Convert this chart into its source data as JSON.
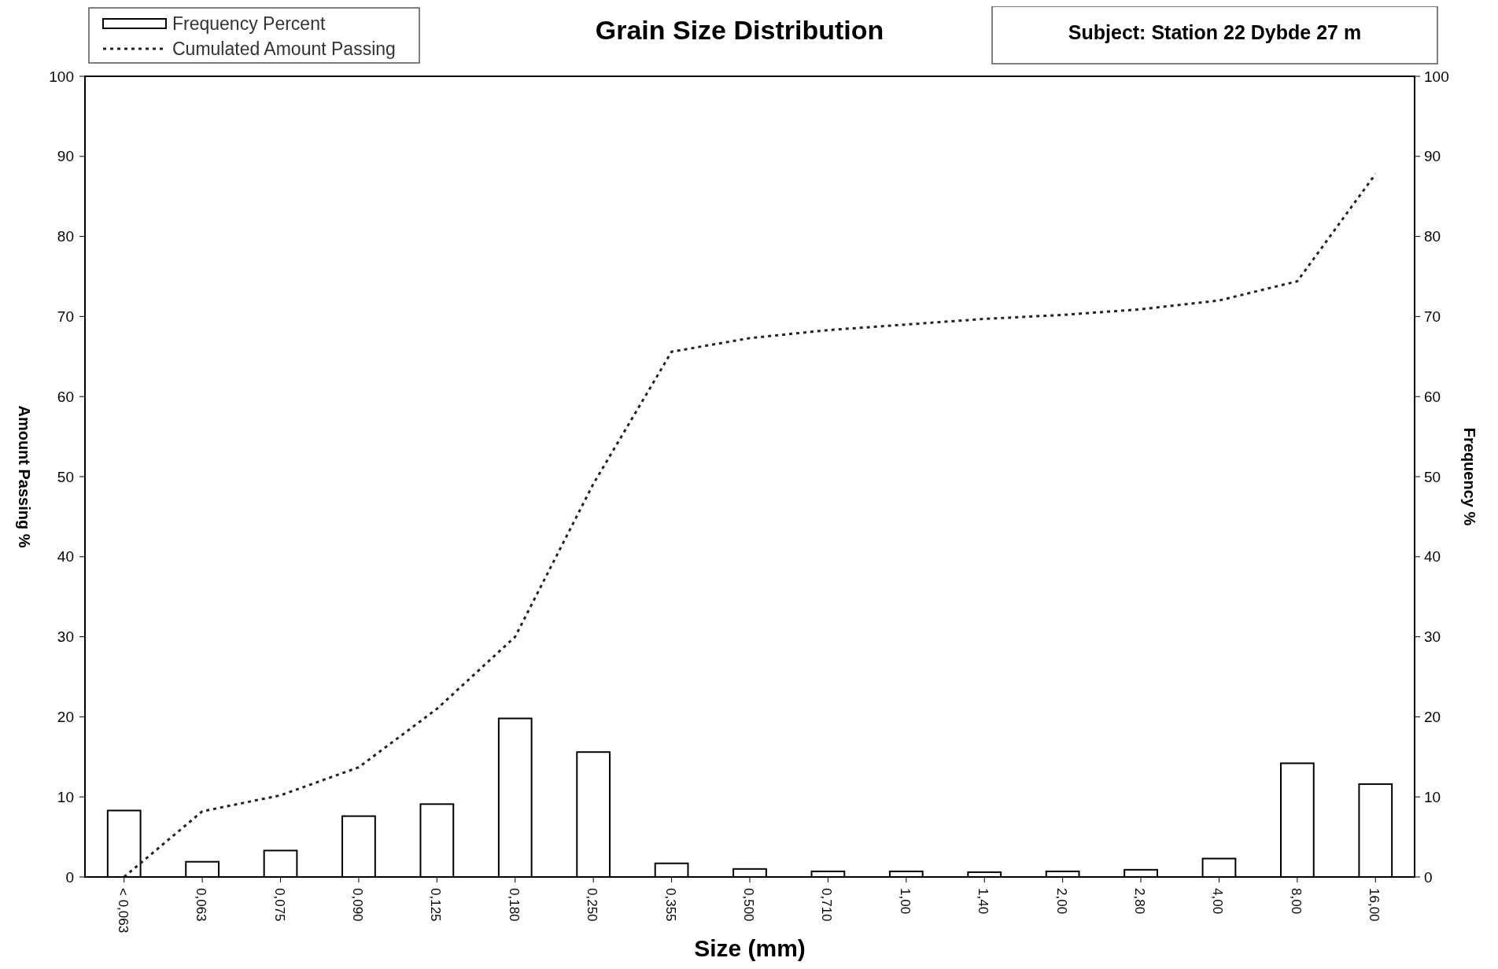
{
  "chart_data": {
    "type": "bar",
    "title": "Grain Size Distribution",
    "xlabel": "Size  (mm)",
    "ylabel": "Amount Passing %",
    "y2label": "Frequency %",
    "annotations": [
      "Subject: Station 22  Dybde 27 m"
    ],
    "categories": [
      "< 0,063",
      "0,063",
      "0,075",
      "0,090",
      "0,125",
      "0,180",
      "0,250",
      "0,355",
      "0,500",
      "0,710",
      "1,00",
      "1,40",
      "2,00",
      "2,80",
      "4,00",
      "8,00",
      "16,00"
    ],
    "series": [
      {
        "name": "Frequency Percent",
        "axis": "y2",
        "color": "#ffffff",
        "values": [
          8.3,
          1.9,
          3.3,
          7.6,
          9.1,
          19.8,
          15.6,
          1.7,
          1.0,
          0.7,
          0.7,
          0.6,
          0.7,
          0.9,
          2.3,
          14.2,
          11.6
        ]
      },
      {
        "name": "Cumulated Amount Passing",
        "type": "line",
        "color": "#222222",
        "line_style": "dotted",
        "values": [
          0,
          8.2,
          10.2,
          13.7,
          21.0,
          30.0,
          49.1,
          65.6,
          67.3,
          68.3,
          69.0,
          69.7,
          70.2,
          70.9,
          72.0,
          74.4,
          87.8
        ]
      }
    ],
    "ylim": [
      0,
      100
    ],
    "yticks": [
      0,
      10,
      20,
      30,
      40,
      50,
      60,
      70,
      80,
      90,
      100
    ],
    "y2lim": [
      0,
      100
    ],
    "y2ticks": [
      0,
      10,
      20,
      30,
      40,
      50,
      60,
      70,
      80,
      90,
      100
    ],
    "grid": false,
    "legend": "top left",
    "marker": "none"
  }
}
